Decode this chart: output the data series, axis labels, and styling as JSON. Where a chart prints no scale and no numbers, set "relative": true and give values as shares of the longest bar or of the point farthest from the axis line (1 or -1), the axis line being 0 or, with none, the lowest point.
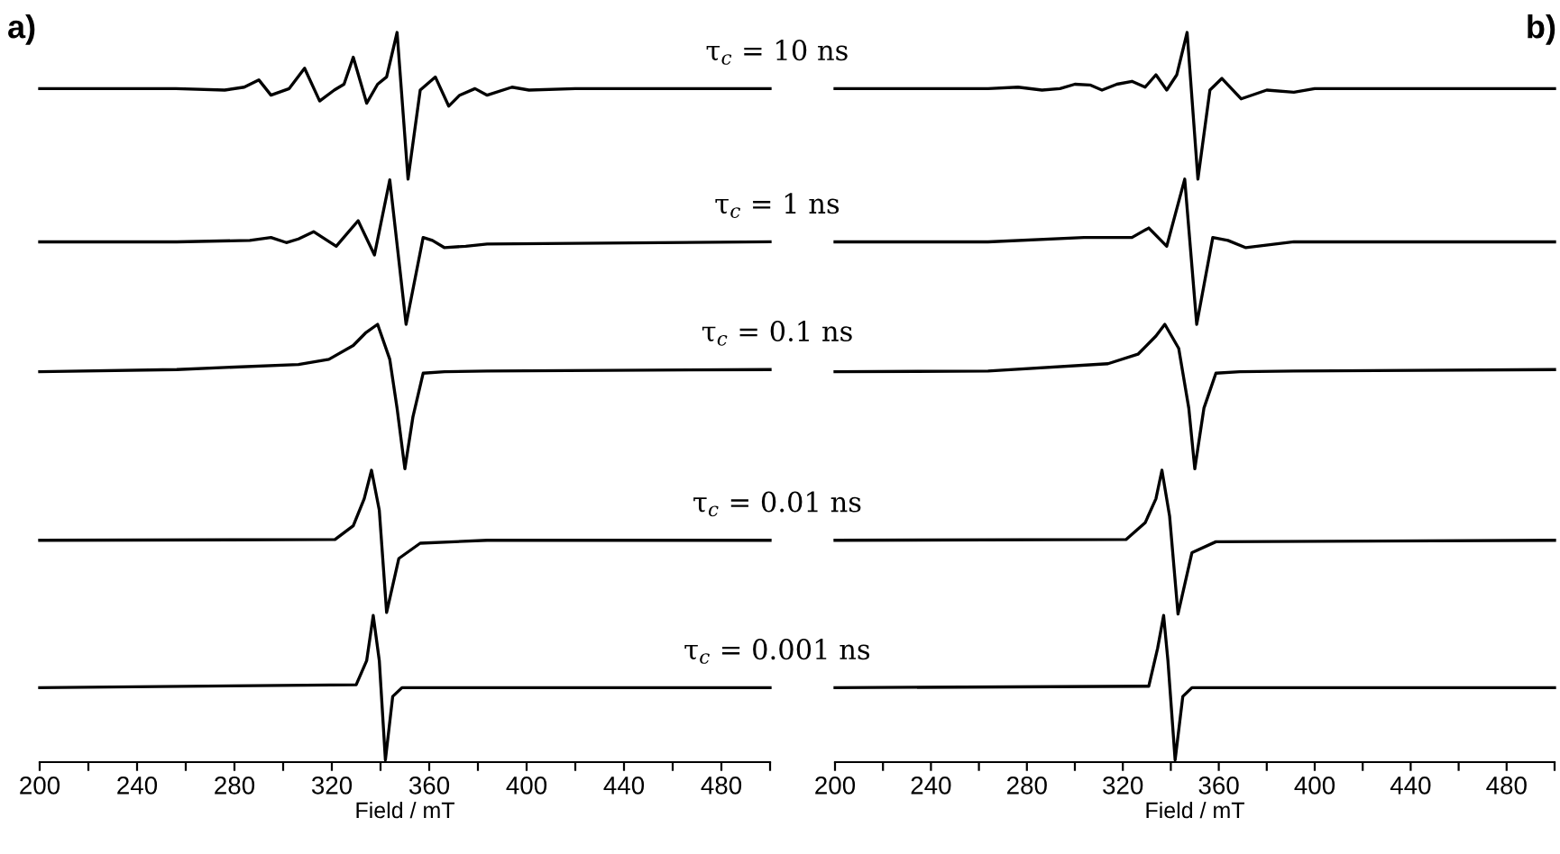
{
  "chart_data": [
    {
      "type": "line",
      "title": "a)",
      "xlabel": "Field / mT",
      "relative": true,
      "xlim": [
        200,
        500
      ],
      "xticks": [
        200,
        {
          "value": 220,
          "label": null
        },
        240,
        {
          "value": 260,
          "label": null
        },
        280,
        {
          "value": 300,
          "label": null
        },
        320,
        {
          "value": 340,
          "label": null
        },
        360,
        {
          "value": 380,
          "label": null
        },
        400,
        {
          "value": 420,
          "label": null
        },
        440,
        {
          "value": 460,
          "label": null
        },
        480,
        {
          "value": 500,
          "label": null
        }
      ],
      "tick_labels": "x",
      "series": [
        {
          "name": "τ$_{c}$ = 10 ns",
          "color": "#000000",
          "x": [
            200,
            256,
            276,
            284,
            290,
            295,
            302.5,
            308.8,
            315,
            321,
            325,
            328.8,
            334.3,
            338.8,
            342.5,
            346.8,
            351.3,
            356.3,
            362.5,
            368,
            372.5,
            378.8,
            383.8,
            394,
            401,
            420,
            500
          ],
          "values": [
            0.923,
            0.923,
            0.921,
            0.925,
            0.935,
            0.914,
            0.923,
            0.951,
            0.906,
            0.921,
            0.929,
            0.966,
            0.903,
            0.929,
            0.939,
            1,
            0.799,
            0.921,
            0.939,
            0.899,
            0.914,
            0.923,
            0.914,
            0.925,
            0.921,
            0.923,
            0.923
          ]
        },
        {
          "name": "τ$_{c}$ = 1 ns",
          "color": "#000000",
          "x": [
            200,
            256.3,
            286.3,
            295,
            301.3,
            306.3,
            312.5,
            321.8,
            330.8,
            337.5,
            343.8,
            350.5,
            357.5,
            361.3,
            366.3,
            375,
            383.8,
            500
          ],
          "values": [
            0.713,
            0.713,
            0.715,
            0.719,
            0.712,
            0.717,
            0.727,
            0.707,
            0.742,
            0.695,
            0.798,
            0.6,
            0.719,
            0.715,
            0.705,
            0.707,
            0.71,
            0.713
          ]
        },
        {
          "name": "τ$_{c}$ = 0.1 ns",
          "color": "#000000",
          "x": [
            200,
            256.3,
            306.3,
            318.8,
            328.8,
            333.8,
            338.8,
            343.8,
            346.8,
            350,
            353.3,
            357.5,
            366.3,
            383.8,
            500
          ],
          "values": [
            0.535,
            0.538,
            0.545,
            0.552,
            0.571,
            0.588,
            0.6,
            0.552,
            0.485,
            0.402,
            0.473,
            0.533,
            0.535,
            0.536,
            0.538
          ]
        },
        {
          "name": "τ$_{c}$ = 0.01 ns",
          "color": "#000000",
          "x": [
            200,
            321.3,
            328.8,
            333.3,
            336.3,
            339.5,
            342.5,
            347.5,
            356.3,
            383.8,
            500
          ],
          "values": [
            0.304,
            0.305,
            0.324,
            0.361,
            0.4,
            0.345,
            0.205,
            0.279,
            0.3,
            0.304,
            0.304
          ]
        },
        {
          "name": "τ$_{c}$ = 0.001 ns",
          "color": "#000000",
          "x": [
            200,
            330,
            334.3,
            337,
            339.5,
            342,
            345,
            348.8,
            500
          ],
          "values": [
            0.102,
            0.106,
            0.139,
            0.201,
            0.139,
            0.003,
            0.09,
            0.102,
            0.102
          ]
        }
      ]
    },
    {
      "type": "line",
      "title": "b)",
      "xlabel": "Field / mT",
      "relative": true,
      "xlim": [
        200,
        500
      ],
      "xticks": [
        200,
        {
          "value": 220,
          "label": null
        },
        240,
        {
          "value": 260,
          "label": null
        },
        280,
        {
          "value": 300,
          "label": null
        },
        320,
        {
          "value": 340,
          "label": null
        },
        360,
        {
          "value": 380,
          "label": null
        },
        400,
        {
          "value": 420,
          "label": null
        },
        440,
        {
          "value": 460,
          "label": null
        },
        480,
        {
          "value": 500,
          "label": null
        }
      ],
      "tick_labels": "x",
      "series": [
        {
          "color": "#000000",
          "x": [
            200,
            263.8,
            276.3,
            286.3,
            293.8,
            300,
            306.3,
            311.3,
            317.5,
            323.8,
            329.3,
            333.8,
            338.3,
            342.5,
            346.8,
            351.3,
            356.3,
            361.3,
            369.3,
            380,
            391.3,
            400,
            500
          ],
          "values": [
            0.923,
            0.923,
            0.925,
            0.921,
            0.923,
            0.929,
            0.928,
            0.921,
            0.929,
            0.933,
            0.925,
            0.942,
            0.921,
            0.942,
            1,
            0.799,
            0.921,
            0.937,
            0.909,
            0.921,
            0.918,
            0.923,
            0.923
          ]
        },
        {
          "color": "#000000",
          "x": [
            200,
            263.8,
            303.8,
            323.8,
            330.8,
            338.3,
            345.8,
            350.8,
            357.5,
            363.8,
            371.3,
            391.3,
            500
          ],
          "values": [
            0.713,
            0.713,
            0.719,
            0.719,
            0.732,
            0.707,
            0.799,
            0.6,
            0.719,
            0.715,
            0.705,
            0.713,
            0.713
          ]
        },
        {
          "color": "#000000",
          "x": [
            200,
            263.8,
            313.8,
            326.3,
            333.8,
            337.5,
            343.3,
            347.5,
            350,
            353.8,
            358.8,
            368.8,
            391.3,
            500
          ],
          "values": [
            0.535,
            0.536,
            0.546,
            0.559,
            0.584,
            0.6,
            0.567,
            0.485,
            0.402,
            0.485,
            0.533,
            0.535,
            0.536,
            0.538
          ]
        },
        {
          "color": "#000000",
          "x": [
            200,
            321.3,
            329.3,
            333.8,
            336.3,
            339.5,
            343,
            348.8,
            358.8,
            500
          ],
          "values": [
            0.304,
            0.305,
            0.328,
            0.361,
            0.4,
            0.337,
            0.203,
            0.287,
            0.302,
            0.304
          ]
        },
        {
          "color": "#000000",
          "x": [
            200,
            330.8,
            334.5,
            337,
            338.8,
            341.8,
            345,
            348.8,
            500
          ],
          "values": [
            0.102,
            0.104,
            0.156,
            0.201,
            0.139,
            0.003,
            0.09,
            0.102,
            0.102
          ]
        }
      ]
    }
  ]
}
